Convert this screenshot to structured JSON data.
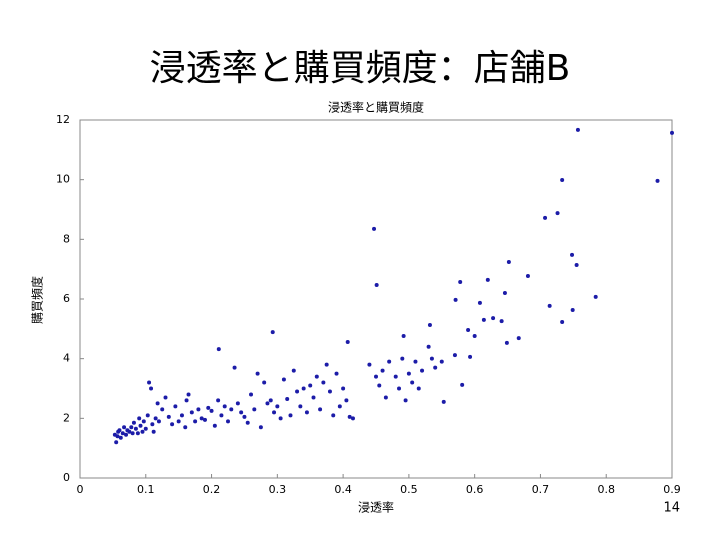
{
  "slide": {
    "title": "浸透率と購買頻度：店舗B",
    "page_number": "14"
  },
  "chart_data": {
    "type": "scatter",
    "title": "浸透率と購買頻度",
    "x_label": "浸透率",
    "y_label": "購買頻度",
    "color": "#1c1ca8",
    "xlim": [
      0,
      0.9
    ],
    "xticks": [
      0,
      0.1,
      0.2,
      0.3,
      0.4,
      0.5,
      0.6,
      0.7,
      0.8,
      0.9
    ],
    "ylim": [
      0,
      12
    ],
    "yticks": [
      0,
      2,
      4,
      6,
      8,
      10,
      12
    ],
    "grid": false,
    "x": [
      0.053,
      0.055,
      0.057,
      0.058,
      0.06,
      0.062,
      0.065,
      0.067,
      0.07,
      0.072,
      0.075,
      0.078,
      0.08,
      0.082,
      0.085,
      0.088,
      0.09,
      0.092,
      0.095,
      0.097,
      0.1,
      0.103,
      0.105,
      0.108,
      0.11,
      0.112,
      0.115,
      0.118,
      0.12,
      0.125,
      0.13,
      0.135,
      0.14,
      0.145,
      0.15,
      0.155,
      0.16,
      0.162,
      0.165,
      0.17,
      0.175,
      0.18,
      0.185,
      0.19,
      0.195,
      0.2,
      0.205,
      0.21,
      0.215,
      0.22,
      0.225,
      0.23,
      0.235,
      0.24,
      0.245,
      0.25,
      0.255,
      0.26,
      0.265,
      0.27,
      0.275,
      0.28,
      0.285,
      0.29,
      0.295,
      0.3,
      0.305,
      0.31,
      0.315,
      0.32,
      0.325,
      0.33,
      0.335,
      0.34,
      0.345,
      0.35,
      0.355,
      0.36,
      0.365,
      0.37,
      0.375,
      0.38,
      0.385,
      0.39,
      0.395,
      0.4,
      0.405,
      0.41,
      0.415,
      0.44,
      0.45,
      0.455,
      0.46,
      0.465,
      0.47,
      0.48,
      0.485,
      0.49,
      0.495,
      0.5,
      0.505,
      0.51,
      0.515,
      0.52,
      0.53,
      0.535,
      0.54,
      0.55,
      0.757,
      0.9,
      0.878,
      0.733,
      0.707,
      0.726,
      0.447,
      0.451,
      0.748,
      0.755,
      0.681,
      0.652,
      0.62,
      0.784,
      0.714,
      0.733,
      0.749,
      0.646,
      0.608,
      0.571,
      0.211,
      0.293,
      0.578,
      0.532,
      0.614,
      0.628,
      0.641,
      0.59,
      0.6,
      0.667,
      0.649,
      0.492,
      0.407,
      0.57,
      0.593,
      0.581,
      0.553
    ],
    "values": [
      1.45,
      1.2,
      1.4,
      1.55,
      1.6,
      1.35,
      1.5,
      1.7,
      1.45,
      1.6,
      1.55,
      1.7,
      1.5,
      1.85,
      1.65,
      1.5,
      2.0,
      1.75,
      1.55,
      1.9,
      1.65,
      2.1,
      3.2,
      3.0,
      1.8,
      1.55,
      2.0,
      2.5,
      1.9,
      2.3,
      2.7,
      2.05,
      1.8,
      2.4,
      1.9,
      2.1,
      1.7,
      2.6,
      2.8,
      2.2,
      1.9,
      2.3,
      2.0,
      1.95,
      2.35,
      2.25,
      1.75,
      2.6,
      2.1,
      2.4,
      1.9,
      2.3,
      3.7,
      2.5,
      2.2,
      2.05,
      1.85,
      2.8,
      2.3,
      3.5,
      1.7,
      3.2,
      2.5,
      2.6,
      2.2,
      2.4,
      2.0,
      3.3,
      2.65,
      2.1,
      3.6,
      2.9,
      2.4,
      3.0,
      2.2,
      3.1,
      2.7,
      3.4,
      2.3,
      3.2,
      3.8,
      2.9,
      2.1,
      3.5,
      2.4,
      3.0,
      2.6,
      2.05,
      2.0,
      3.8,
      3.4,
      3.1,
      3.6,
      2.7,
      3.9,
      3.4,
      3.0,
      4.0,
      2.6,
      3.5,
      3.2,
      3.9,
      3.0,
      3.6,
      4.4,
      4.0,
      3.7,
      3.9,
      11.67,
      11.57,
      9.96,
      9.99,
      8.72,
      8.88,
      8.35,
      6.47,
      7.48,
      7.14,
      6.77,
      7.24,
      6.64,
      6.07,
      5.77,
      5.23,
      5.63,
      6.2,
      5.87,
      5.97,
      4.32,
      4.89,
      6.57,
      5.13,
      5.3,
      5.36,
      5.26,
      4.96,
      4.76,
      4.69,
      4.53,
      4.76,
      4.56,
      4.12,
      4.06,
      3.12,
      2.55
    ]
  }
}
